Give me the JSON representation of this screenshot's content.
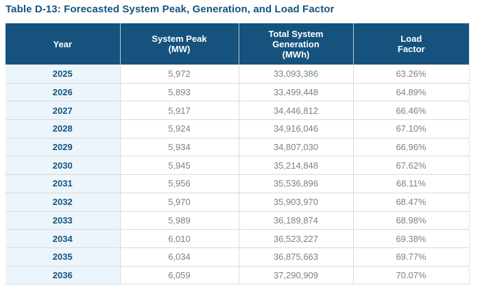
{
  "page": {
    "title": "Table D-13: Forecasted System Peak, Generation, and Load Factor"
  },
  "colors": {
    "title_text": "#16537e",
    "header_bg": "#15537e",
    "header_text": "#ffffff",
    "year_column_bg": "#ecf5fb",
    "year_text": "#16537e",
    "data_text": "#7d7f81",
    "row_border": "#d9d9d9"
  },
  "table": {
    "headers": [
      {
        "id": "year",
        "lines": [
          "Year"
        ]
      },
      {
        "id": "system-peak",
        "lines": [
          "System Peak",
          "(MW)"
        ]
      },
      {
        "id": "total-system-generation",
        "lines": [
          "Total System",
          "Generation",
          "(MWh)"
        ]
      },
      {
        "id": "load-factor",
        "lines": [
          "Load",
          "Factor"
        ]
      }
    ],
    "rows": [
      {
        "year": "2025",
        "system_peak_mw": "5,972",
        "total_generation_mwh": "33,093,386",
        "load_factor": "63.26%"
      },
      {
        "year": "2026",
        "system_peak_mw": "5,893",
        "total_generation_mwh": "33,499,448",
        "load_factor": "64.89%"
      },
      {
        "year": "2027",
        "system_peak_mw": "5,917",
        "total_generation_mwh": "34,446,812",
        "load_factor": "66.46%"
      },
      {
        "year": "2028",
        "system_peak_mw": "5,924",
        "total_generation_mwh": "34,916,046",
        "load_factor": "67.10%"
      },
      {
        "year": "2029",
        "system_peak_mw": "5,934",
        "total_generation_mwh": "34,807,030",
        "load_factor": "66.96%"
      },
      {
        "year": "2030",
        "system_peak_mw": "5,945",
        "total_generation_mwh": "35,214,848",
        "load_factor": "67.62%"
      },
      {
        "year": "2031",
        "system_peak_mw": "5,956",
        "total_generation_mwh": "35,536,896",
        "load_factor": "68.11%"
      },
      {
        "year": "2032",
        "system_peak_mw": "5,970",
        "total_generation_mwh": "35,903,970",
        "load_factor": "68.47%"
      },
      {
        "year": "2033",
        "system_peak_mw": "5,989",
        "total_generation_mwh": "36,189,874",
        "load_factor": "68.98%"
      },
      {
        "year": "2034",
        "system_peak_mw": "6,010",
        "total_generation_mwh": "36,523,227",
        "load_factor": "69.38%"
      },
      {
        "year": "2035",
        "system_peak_mw": "6,034",
        "total_generation_mwh": "36,875,663",
        "load_factor": "69.77%"
      },
      {
        "year": "2036",
        "system_peak_mw": "6,059",
        "total_generation_mwh": "37,290,909",
        "load_factor": "70.07%"
      }
    ]
  }
}
